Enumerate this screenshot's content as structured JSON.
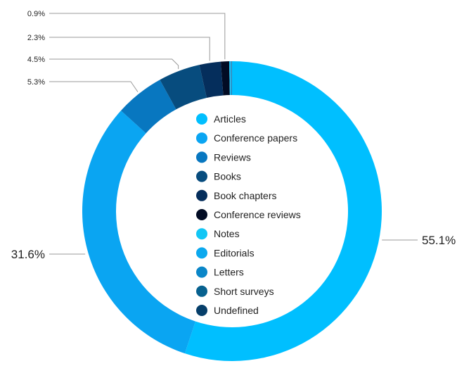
{
  "chart_data": {
    "type": "donut",
    "legend_position": "center",
    "slices": [
      {
        "name": "Articles",
        "value": 55.1,
        "label": "55.1%",
        "color": "#00BFFF"
      },
      {
        "name": "Conference papers",
        "value": 31.6,
        "label": "31.6%",
        "color": "#0AA5F2"
      },
      {
        "name": "Reviews",
        "value": 5.3,
        "label": "5.3%",
        "color": "#0877C0"
      },
      {
        "name": "Books",
        "value": 4.5,
        "label": "4.5%",
        "color": "#074C7E"
      },
      {
        "name": "Book chapters",
        "value": 2.3,
        "label": "2.3%",
        "color": "#052E5C"
      },
      {
        "name": "Conference reviews",
        "value": 0.9,
        "label": "0.9%",
        "color": "#020C24"
      },
      {
        "name": "Notes",
        "value": 0.1,
        "color": "#12C6F5"
      },
      {
        "name": "Editorials",
        "value": 0.1,
        "color": "#0BA8EE"
      },
      {
        "name": "Letters",
        "value": 0.05,
        "color": "#0A86C8"
      },
      {
        "name": "Short surveys",
        "value": 0.03,
        "color": "#07618F"
      },
      {
        "name": "Undefined",
        "value": 0.02,
        "color": "#063F6A"
      }
    ]
  }
}
